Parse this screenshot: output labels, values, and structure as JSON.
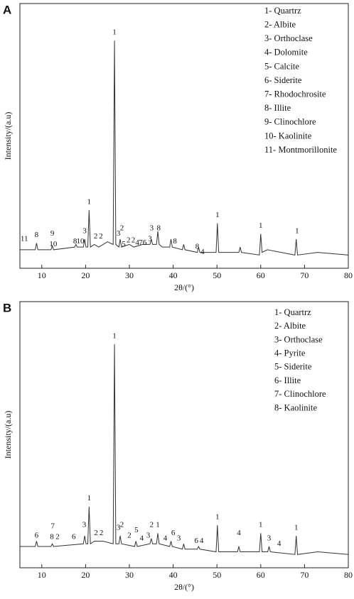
{
  "chart_data": [
    {
      "type": "line",
      "panel_label": "A",
      "x_label": "2θ/(°)",
      "y_label": "Intensity/(a.u)",
      "color": "#333333",
      "xlim": [
        5,
        80
      ],
      "xticks": [
        10,
        20,
        30,
        40,
        50,
        60,
        70,
        80
      ],
      "ylim": [
        0,
        100
      ],
      "legend_position": "top-right",
      "legend": [
        "1- Quartrz",
        "2- Albite",
        "3- Orthoclase",
        "4- Dolomite",
        "5- Calcite",
        "6- Siderite",
        "7- Rhodochrosite",
        "8- Illite",
        "9- Clinochlore",
        "10- Kaolinite",
        "11- Montmorillonite"
      ],
      "x": [
        5,
        8.5,
        8.8,
        9.1,
        12.1,
        12.4,
        12.7,
        17.5,
        17.8,
        18.1,
        19.5,
        19.8,
        20.1,
        20.5,
        20.8,
        21.1,
        22,
        23,
        24,
        25,
        26.3,
        26.6,
        26.9,
        27.6,
        27.9,
        28.2,
        30,
        31,
        33,
        34.7,
        35,
        35.3,
        36.2,
        36.5,
        36.8,
        37.5,
        39.2,
        39.5,
        39.8,
        42.1,
        42.4,
        42.7,
        45.5,
        45.8,
        46.1,
        49.8,
        50.1,
        50.4,
        55,
        55.3,
        55.6,
        59.7,
        60,
        60.3,
        61.5,
        67.8,
        68.1,
        68.4,
        73,
        80
      ],
      "values": [
        7,
        7,
        9.5,
        7,
        7,
        8.5,
        7,
        8,
        9,
        8,
        8,
        11,
        8,
        8,
        22,
        8,
        9,
        8,
        9,
        10,
        9,
        86,
        9,
        8,
        11,
        8,
        9,
        8,
        9,
        9,
        11,
        9,
        9,
        14,
        9,
        8,
        8,
        11,
        8,
        7,
        9,
        7,
        6,
        8,
        6,
        6,
        17,
        6,
        6,
        8,
        6,
        5,
        13,
        6,
        7,
        5,
        11,
        5,
        6,
        5
      ],
      "annotations": [
        {
          "text": "11",
          "x": 6,
          "y": 11
        },
        {
          "text": "8",
          "x": 8.8,
          "y": 12.5
        },
        {
          "text": "9",
          "x": 12.4,
          "y": 13
        },
        {
          "text": "10",
          "x": 12.6,
          "y": 9
        },
        {
          "text": "8",
          "x": 17.6,
          "y": 10
        },
        {
          "text": "10",
          "x": 18.8,
          "y": 10
        },
        {
          "text": "3",
          "x": 19.8,
          "y": 14
        },
        {
          "text": "1",
          "x": 20.8,
          "y": 25
        },
        {
          "text": "2",
          "x": 22.3,
          "y": 12
        },
        {
          "text": "2",
          "x": 23.5,
          "y": 12
        },
        {
          "text": "1",
          "x": 26.6,
          "y": 89
        },
        {
          "text": "3",
          "x": 27.5,
          "y": 13
        },
        {
          "text": "2",
          "x": 28.3,
          "y": 15
        },
        {
          "text": "5",
          "x": 28.7,
          "y": 9
        },
        {
          "text": "2",
          "x": 29.8,
          "y": 10.5
        },
        {
          "text": "2",
          "x": 30.9,
          "y": 10.5
        },
        {
          "text": "4",
          "x": 31.8,
          "y": 9.5
        },
        {
          "text": "7",
          "x": 32.6,
          "y": 9.5
        },
        {
          "text": "6",
          "x": 33.5,
          "y": 9.5
        },
        {
          "text": "3",
          "x": 34.7,
          "y": 11
        },
        {
          "text": "3",
          "x": 35.1,
          "y": 15
        },
        {
          "text": "8",
          "x": 36.7,
          "y": 15
        },
        {
          "text": "8",
          "x": 40.4,
          "y": 10
        },
        {
          "text": "8",
          "x": 45.5,
          "y": 8
        },
        {
          "text": "4",
          "x": 46.7,
          "y": 6
        },
        {
          "text": "1",
          "x": 50.1,
          "y": 20
        },
        {
          "text": "1",
          "x": 60,
          "y": 16
        },
        {
          "text": "1",
          "x": 68.3,
          "y": 14
        }
      ]
    },
    {
      "type": "line",
      "panel_label": "B",
      "x_label": "2θ/(°)",
      "y_label": "Intensity/(a.u)",
      "color": "#333333",
      "xlim": [
        5,
        80
      ],
      "xticks": [
        10,
        20,
        30,
        40,
        50,
        60,
        70,
        80
      ],
      "ylim": [
        0,
        100
      ],
      "legend_position": "top-right",
      "legend": [
        "1- Quartrz",
        "2- Albite",
        "3- Orthoclase",
        "4- Pyrite",
        "5- Siderite",
        "6- Illite",
        "7- Clinochlore",
        "8- Kaolinite"
      ],
      "x": [
        5,
        8.5,
        8.8,
        9.1,
        12.1,
        12.4,
        12.7,
        19.5,
        19.8,
        20.1,
        20.5,
        20.8,
        21.1,
        22,
        24,
        26.3,
        26.6,
        26.9,
        27.6,
        27.9,
        28.2,
        31.2,
        31.5,
        31.8,
        34.7,
        35,
        35.3,
        36.2,
        36.5,
        36.8,
        39.2,
        39.5,
        39.8,
        42.1,
        42.4,
        42.7,
        45.5,
        45.8,
        46.1,
        49.8,
        50.1,
        50.4,
        54.7,
        55,
        55.3,
        59.7,
        60,
        60.3,
        61.6,
        61.9,
        62.2,
        67.8,
        68.1,
        68.4,
        73,
        80
      ],
      "values": [
        8,
        8,
        10,
        8,
        8,
        9,
        8,
        9,
        12,
        9,
        9,
        23,
        9,
        10,
        10,
        9,
        84,
        9,
        9,
        12,
        9,
        8,
        10,
        8,
        9,
        11,
        9,
        9,
        13,
        9,
        8,
        10,
        8,
        7,
        9,
        7,
        7,
        8,
        7,
        6,
        16,
        6,
        6,
        8,
        6,
        6,
        13,
        6,
        6,
        8,
        6,
        5,
        12,
        5,
        6,
        5
      ],
      "annotations": [
        {
          "text": "6",
          "x": 8.8,
          "y": 12
        },
        {
          "text": "7",
          "x": 12.5,
          "y": 15.5
        },
        {
          "text": "8",
          "x": 12.3,
          "y": 11.5
        },
        {
          "text": "2",
          "x": 13.6,
          "y": 11.5
        },
        {
          "text": "6",
          "x": 17.3,
          "y": 11.5
        },
        {
          "text": "3",
          "x": 19.7,
          "y": 16
        },
        {
          "text": "1",
          "x": 20.8,
          "y": 26
        },
        {
          "text": "2",
          "x": 22.4,
          "y": 13
        },
        {
          "text": "2",
          "x": 23.6,
          "y": 13
        },
        {
          "text": "1",
          "x": 26.6,
          "y": 87
        },
        {
          "text": "3",
          "x": 27.5,
          "y": 15
        },
        {
          "text": "2",
          "x": 28.3,
          "y": 16
        },
        {
          "text": "2",
          "x": 30,
          "y": 12
        },
        {
          "text": "5",
          "x": 31.6,
          "y": 14
        },
        {
          "text": "4",
          "x": 32.8,
          "y": 11
        },
        {
          "text": "3",
          "x": 34.3,
          "y": 12
        },
        {
          "text": "2",
          "x": 35.1,
          "y": 16
        },
        {
          "text": "1",
          "x": 36.5,
          "y": 16
        },
        {
          "text": "4",
          "x": 38.2,
          "y": 11
        },
        {
          "text": "6",
          "x": 40,
          "y": 13
        },
        {
          "text": "3",
          "x": 41.3,
          "y": 11
        },
        {
          "text": "6",
          "x": 45.3,
          "y": 10
        },
        {
          "text": "4",
          "x": 46.5,
          "y": 10
        },
        {
          "text": "1",
          "x": 50.1,
          "y": 19
        },
        {
          "text": "4",
          "x": 55,
          "y": 13
        },
        {
          "text": "1",
          "x": 60,
          "y": 16
        },
        {
          "text": "3",
          "x": 61.9,
          "y": 11
        },
        {
          "text": "4",
          "x": 64.2,
          "y": 9
        },
        {
          "text": "1",
          "x": 68.1,
          "y": 15
        }
      ]
    }
  ]
}
